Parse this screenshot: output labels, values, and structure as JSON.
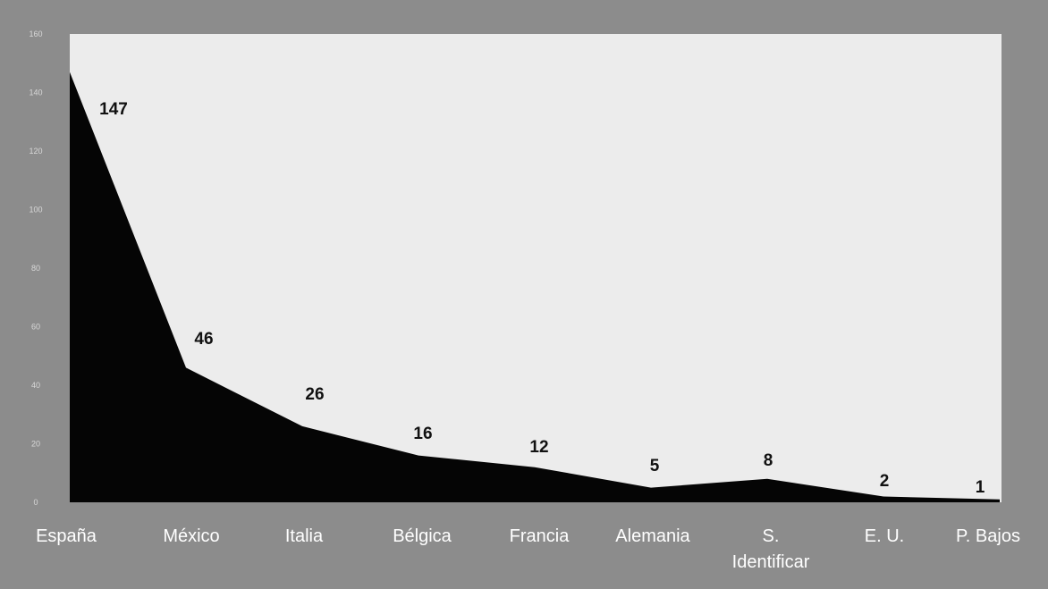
{
  "chart_data": {
    "type": "area",
    "title": "",
    "xlabel": "",
    "ylabel": "",
    "categories": [
      "España",
      "México",
      "Italia",
      "Bélgica",
      "Francia",
      "Alemania",
      "S. Identificar",
      "E. U.",
      "P. Bajos"
    ],
    "category_lines": [
      [
        "España"
      ],
      [
        "México"
      ],
      [
        "Italia"
      ],
      [
        "Bélgica"
      ],
      [
        "Francia"
      ],
      [
        "Alemania"
      ],
      [
        "S.",
        "Identificar"
      ],
      [
        "E. U."
      ],
      [
        "P. Bajos"
      ]
    ],
    "values": [
      147,
      46,
      26,
      16,
      12,
      5,
      8,
      2,
      1
    ],
    "data_labels": [
      "147",
      "46",
      "26",
      "16",
      "12",
      "5",
      "8",
      "2",
      "1"
    ],
    "ylim": [
      0,
      160
    ],
    "yticks": [
      0,
      20,
      40,
      60,
      80,
      100,
      120,
      140,
      160
    ],
    "ytick_labels": [
      "0",
      "20",
      "40",
      "60",
      "80",
      "100",
      "120",
      "140",
      "160"
    ],
    "grid": false,
    "legend": "none",
    "colors": {
      "background": "#8c8c8c",
      "plot_area": "#ececec",
      "fill": "#050505",
      "category_text": "#ffffff",
      "data_label_text": "#111111",
      "tick_text": "#d8d8d8"
    }
  }
}
